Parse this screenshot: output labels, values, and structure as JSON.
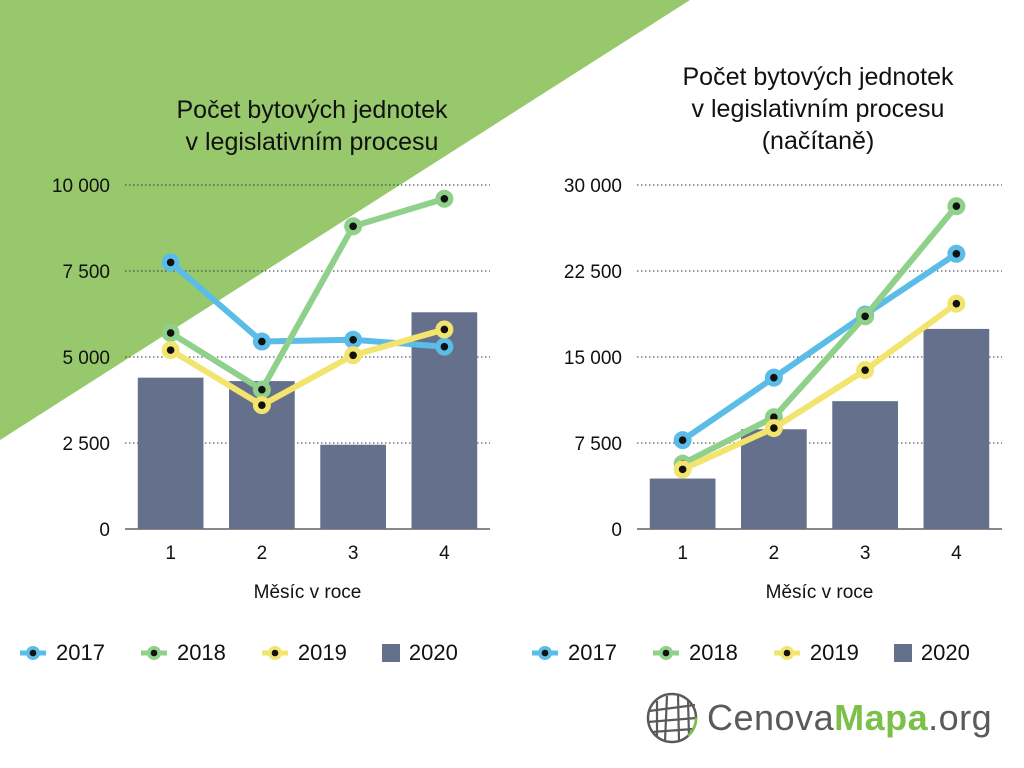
{
  "colors": {
    "background_triangle": "#97c86c",
    "s2017": "#5bbce8",
    "s2018": "#8fd08b",
    "s2019": "#f2e46d",
    "s2020": "#65718c",
    "marker_dot": "#111111",
    "grid": "#333333"
  },
  "chart_data": [
    {
      "type": "bar+line",
      "title": "Počet bytových jednotek v legislativním procesu",
      "xlabel": "Měsíc v roce",
      "ylabel": "",
      "categories": [
        "1",
        "2",
        "3",
        "4"
      ],
      "ylim": [
        0,
        10000
      ],
      "yticks": [
        0,
        2500,
        5000,
        7500,
        10000
      ],
      "ytick_labels": [
        "0",
        "2 500",
        "5 000",
        "7 500",
        "10 000"
      ],
      "grid": true,
      "legend_position": "bottom",
      "series": [
        {
          "name": "2017",
          "kind": "line",
          "values": [
            7750,
            5450,
            5500,
            5300
          ]
        },
        {
          "name": "2018",
          "kind": "line",
          "values": [
            5700,
            4050,
            8800,
            9600
          ]
        },
        {
          "name": "2019",
          "kind": "line",
          "values": [
            5200,
            3600,
            5050,
            5800
          ]
        },
        {
          "name": "2020",
          "kind": "bar",
          "values": [
            4400,
            4300,
            2450,
            6300
          ]
        }
      ]
    },
    {
      "type": "bar+line",
      "title": "Počet bytových jednotek v legislativním procesu (načítaně)",
      "xlabel": "Měsíc v roce",
      "ylabel": "",
      "categories": [
        "1",
        "2",
        "3",
        "4"
      ],
      "ylim": [
        0,
        30000
      ],
      "yticks": [
        0,
        7500,
        15000,
        22500,
        30000
      ],
      "ytick_labels": [
        "0",
        "7 500",
        "15 000",
        "22 500",
        "30 000"
      ],
      "grid": true,
      "legend_position": "bottom",
      "series": [
        {
          "name": "2017",
          "kind": "line",
          "values": [
            7750,
            13200,
            18700,
            24000
          ]
        },
        {
          "name": "2018",
          "kind": "line",
          "values": [
            5700,
            9750,
            18550,
            28150
          ]
        },
        {
          "name": "2019",
          "kind": "line",
          "values": [
            5200,
            8800,
            13850,
            19650
          ]
        },
        {
          "name": "2020",
          "kind": "bar",
          "values": [
            4400,
            8700,
            11150,
            17450
          ]
        }
      ]
    }
  ],
  "titles": {
    "left_line1": "Počet bytových jednotek",
    "left_line2": "v legislativním procesu",
    "right_line1": "Počet bytových jednotek",
    "right_line2": "v legislativním procesu",
    "right_line3": "(načítaně)"
  },
  "legend": [
    "2017",
    "2018",
    "2019",
    "2020"
  ],
  "logo": {
    "part1": "Cenova",
    "part2": "Mapa",
    "part3": ".org",
    "icon": "globe-icon"
  }
}
